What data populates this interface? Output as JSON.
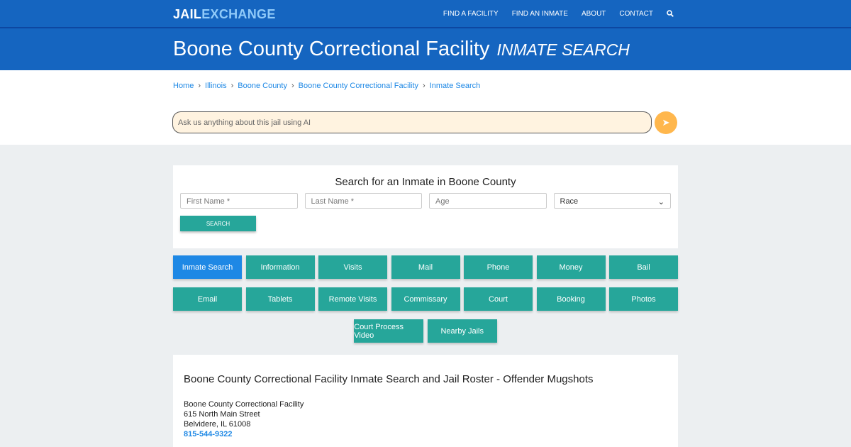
{
  "nav": {
    "logo_a": "JAIL",
    "logo_b": "EXCHANGE",
    "items": [
      "FIND A FACILITY",
      "FIND AN INMATE",
      "ABOUT",
      "CONTACT"
    ],
    "search_icon": "magnifier-icon"
  },
  "header": {
    "title": "Boone County Correctional Facility",
    "subtitle": "INMATE SEARCH"
  },
  "breadcrumb": [
    "Home",
    "Illinois",
    "Boone County",
    "Boone County Correctional Facility",
    "Inmate Search"
  ],
  "ai": {
    "placeholder": "Ask us anything about this jail using AI",
    "send_icon": "paper-plane-icon"
  },
  "form": {
    "title": "Search for an Inmate in Boone County",
    "first": "First Name *",
    "last": "Last Name *",
    "age": "Age",
    "race": "Race",
    "button": "SEARCH"
  },
  "buttons": {
    "row1": [
      "Inmate Search",
      "Information",
      "Visits",
      "Mail",
      "Phone",
      "Money",
      "Bail"
    ],
    "row2": [
      "Email",
      "Tablets",
      "Remote Visits",
      "Commissary",
      "Court",
      "Booking",
      "Photos"
    ],
    "row3": [
      "Court Process Video",
      "Nearby Jails"
    ]
  },
  "info": {
    "title": "Boone County Correctional Facility Inmate Search and Jail Roster - Offender Mugshots",
    "name": "Boone County Correctional Facility",
    "street": "615 North Main Street",
    "city": "Belvidere, IL 61008",
    "phone": "815-544-9322"
  },
  "colors": {
    "brand": "#1565c0",
    "teal": "#26a69a",
    "active": "#1e88e5",
    "ai_bg": "#fff3e0",
    "send": "#ffb74d"
  }
}
